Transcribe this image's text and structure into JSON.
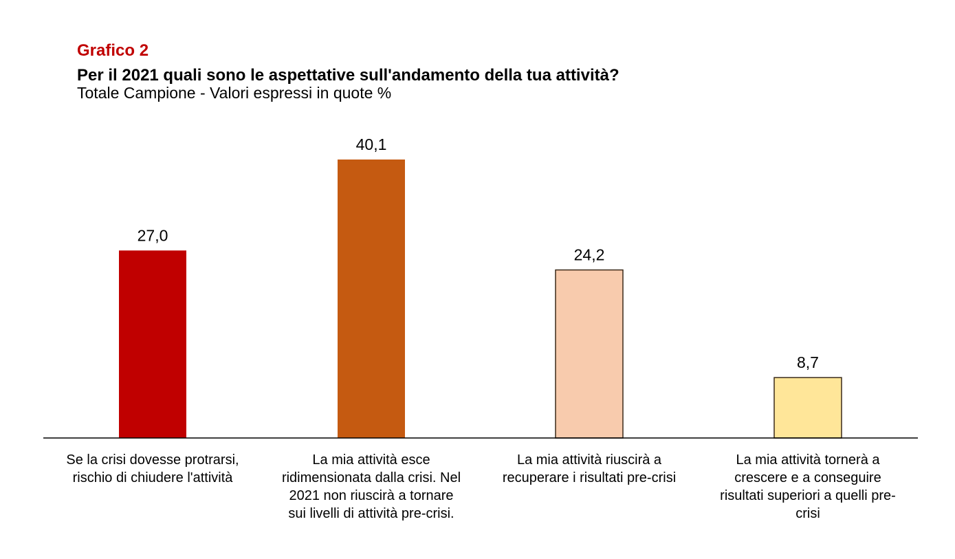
{
  "chart_data": {
    "type": "bar",
    "label": "Grafico 2",
    "title": "Per il 2021 quali sono le  aspettative sull'andamento della tua attività?",
    "subtitle": "Totale Campione - Valori espressi in quote %",
    "categories": [
      "Se la crisi dovesse protrarsi,\nrischio di chiudere l'attività",
      "La mia attività esce\nridimensionata dalla crisi. Nel\n2021 non riuscirà a tornare\nsui livelli di attività pre-crisi.",
      "La mia attività riuscirà a\nrecuperare i risultati pre-crisi",
      "La mia attività tornerà a\ncrescere e a conseguire\nrisultati superiori a quelli pre-\ncrisi"
    ],
    "values": [
      27.0,
      40.1,
      24.2,
      8.7
    ],
    "value_labels": [
      "27,0",
      "40,1",
      "24,2",
      "8,7"
    ],
    "colors": [
      "#c00000",
      "#c55a11",
      "#f8cbad",
      "#ffe699"
    ],
    "ylim": [
      0,
      40.1
    ],
    "grid": false,
    "xlabel": "",
    "ylabel": ""
  }
}
